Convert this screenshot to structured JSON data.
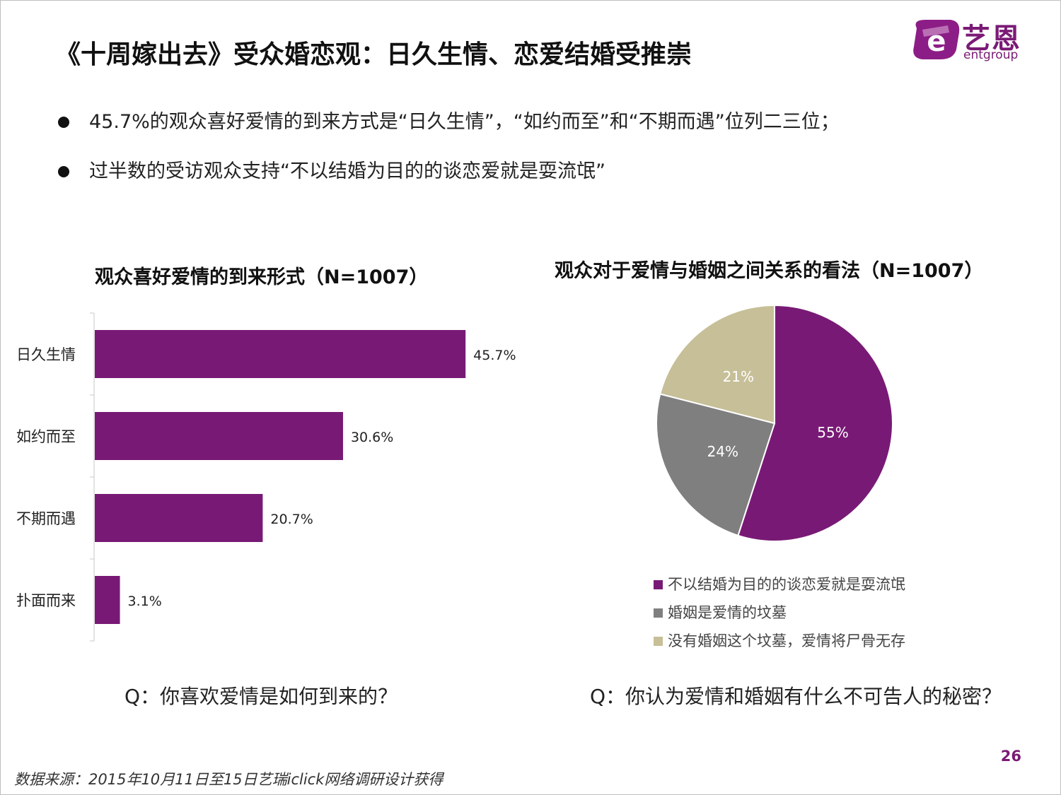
{
  "title": "《十周嫁出去》受众婚恋观：日久生情、恋爱结婚受推崇",
  "logo": {
    "cn": "艺恩",
    "en": "entgroup",
    "mark": "e"
  },
  "bullets": [
    "45.7%的观众喜好爱情的到来方式是“日久生情”，“如约而至”和“不期而遇”位列二三位；",
    "过半数的受访观众支持“不以结婚为目的的谈恋爱就是耍流氓”"
  ],
  "chart_data": [
    {
      "type": "bar",
      "orientation": "horizontal",
      "title": "观众喜好爱情的到来形式（N=1007）",
      "categories": [
        "日久生情",
        "如约而至",
        "不期而遇",
        "扑面而来"
      ],
      "values": [
        45.7,
        30.6,
        20.7,
        3.1
      ],
      "labels": [
        "45.7%",
        "30.6%",
        "20.7%",
        "3.1%"
      ],
      "color": "#781a75",
      "xlim": [
        0,
        50
      ],
      "grid": false
    },
    {
      "type": "pie",
      "title": "观众对于爱情与婚姻之间关系的看法（N=1007）",
      "slices": [
        {
          "name": "不以结婚为目的的谈恋爱就是耍流氓",
          "value": 55,
          "label": "55%",
          "color": "#781a75"
        },
        {
          "name": "婚姻是爱情的坟墓",
          "value": 24,
          "label": "24%",
          "color": "#7f7f7f"
        },
        {
          "name": "没有婚姻这个坟墓，爱情将尸骨无存",
          "value": 21,
          "label": "21%",
          "color": "#c6bf98"
        }
      ],
      "legend_position": "bottom"
    }
  ],
  "questions": {
    "left": "Q：你喜欢爱情是如何到来的？",
    "right": "Q：你认为爱情和婚姻有什么不可告人的秘密？"
  },
  "page_number": "26",
  "source": "数据来源：2015年10月11日至15日艺瑞iclick网络调研设计获得"
}
